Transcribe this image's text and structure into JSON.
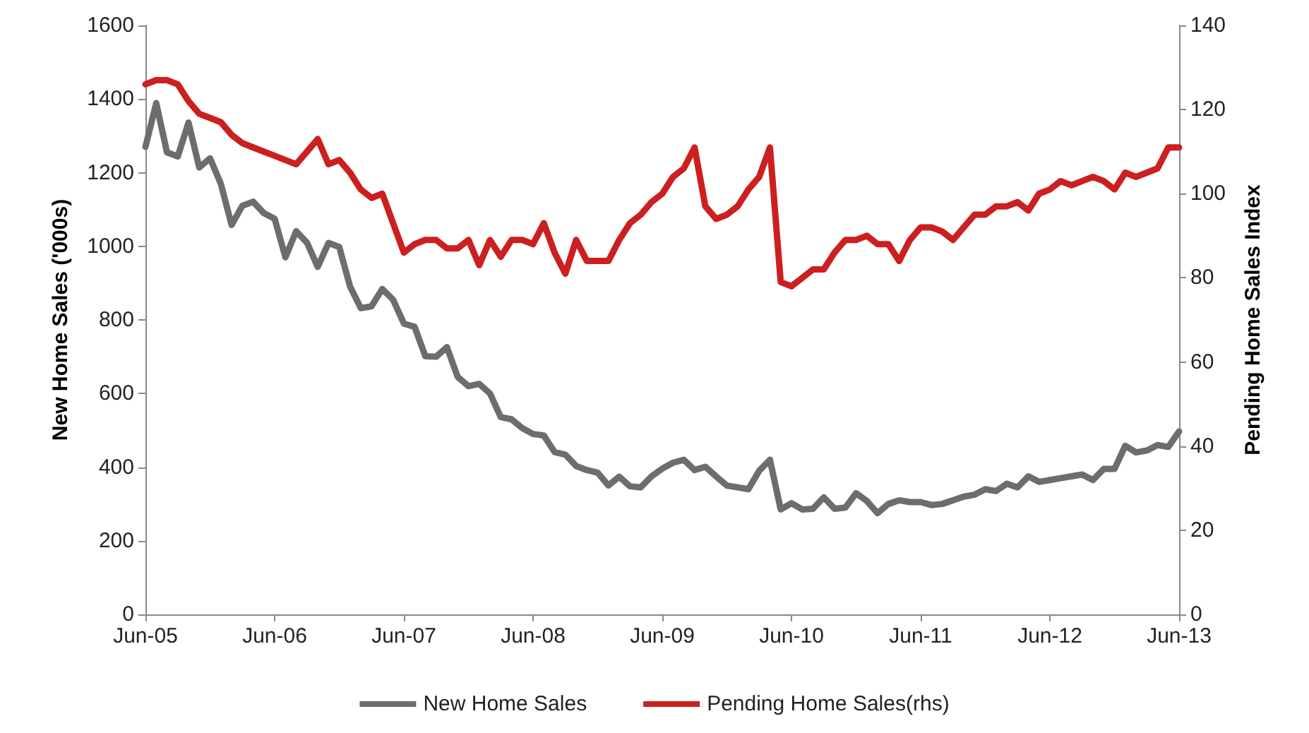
{
  "chart_data": {
    "type": "line",
    "ylabel": "New Home Sales ('000s)",
    "y2label": "Pending Home Sales Index",
    "categories": [
      "Jun-05",
      null,
      null,
      null,
      null,
      null,
      null,
      null,
      null,
      null,
      null,
      null,
      "Jun-06",
      null,
      null,
      null,
      null,
      null,
      null,
      null,
      null,
      null,
      null,
      null,
      "Jun-07",
      null,
      null,
      null,
      null,
      null,
      null,
      null,
      null,
      null,
      null,
      null,
      "Jun-08",
      null,
      null,
      null,
      null,
      null,
      null,
      null,
      null,
      null,
      null,
      null,
      "Jun-09",
      null,
      null,
      null,
      null,
      null,
      null,
      null,
      null,
      null,
      null,
      null,
      "Jun-10",
      null,
      null,
      null,
      null,
      null,
      null,
      null,
      null,
      null,
      null,
      null,
      "Jun-11",
      null,
      null,
      null,
      null,
      null,
      null,
      null,
      null,
      null,
      null,
      null,
      "Jun-12",
      null,
      null,
      null,
      null,
      null,
      null,
      null,
      null,
      null,
      null,
      null,
      "Jun-13"
    ],
    "series": [
      {
        "name": "New Home Sales",
        "color": "#6d6d6d",
        "values": [
          1270,
          1389,
          1255,
          1244,
          1336,
          1214,
          1239,
          1170,
          1058,
          1110,
          1121,
          1090,
          1075,
          970,
          1041,
          1010,
          944,
          1009,
          998,
          891,
          832,
          837,
          884,
          855,
          790,
          781,
          701,
          700,
          726,
          645,
          620,
          626,
          600,
          536,
          530,
          506,
          490,
          486,
          441,
          434,
          403,
          392,
          385,
          350,
          374,
          348,
          345,
          375,
          396,
          412,
          420,
          392,
          401,
          375,
          350,
          345,
          340,
          390,
          420,
          285,
          302,
          285,
          287,
          318,
          287,
          290,
          329,
          308,
          275,
          300,
          310,
          305,
          305,
          297,
          300,
          310,
          320,
          325,
          340,
          335,
          355,
          345,
          375,
          360,
          365,
          370,
          375,
          380,
          365,
          395,
          395,
          458,
          440,
          445,
          460,
          455,
          497
        ]
      },
      {
        "name": "Pending Home Sales(rhs)",
        "color": "#cc1f1f",
        "axis": "y2",
        "values": [
          126,
          127,
          127,
          126,
          122,
          119,
          118,
          117,
          114,
          112,
          111,
          110,
          109,
          108,
          107,
          110,
          113,
          107,
          108,
          105,
          101,
          99,
          100,
          93,
          86,
          88,
          89,
          89,
          87,
          87,
          89,
          83,
          89,
          85,
          89,
          89,
          88,
          93,
          86,
          81,
          89,
          84,
          84,
          84,
          89,
          93,
          95,
          98,
          100,
          104,
          106,
          111,
          97,
          94,
          95,
          97,
          101,
          104,
          111,
          79,
          78,
          80,
          82,
          82,
          86,
          89,
          89,
          90,
          88,
          88,
          84,
          89,
          92,
          92,
          91,
          89,
          92,
          95,
          95,
          97,
          97,
          98,
          96,
          100,
          101,
          103,
          102,
          103,
          104,
          103,
          101,
          105,
          104,
          105,
          106,
          111,
          111
        ]
      }
    ],
    "ylim": [
      0,
      1600
    ],
    "yticks": [
      0,
      200,
      400,
      600,
      800,
      1000,
      1200,
      1400,
      1600
    ],
    "y2lim": [
      0,
      140
    ],
    "y2ticks": [
      0,
      20,
      40,
      60,
      80,
      100,
      120,
      140
    ],
    "grid": false,
    "legend": "bottom",
    "marker": "none",
    "line_style": "solid"
  }
}
